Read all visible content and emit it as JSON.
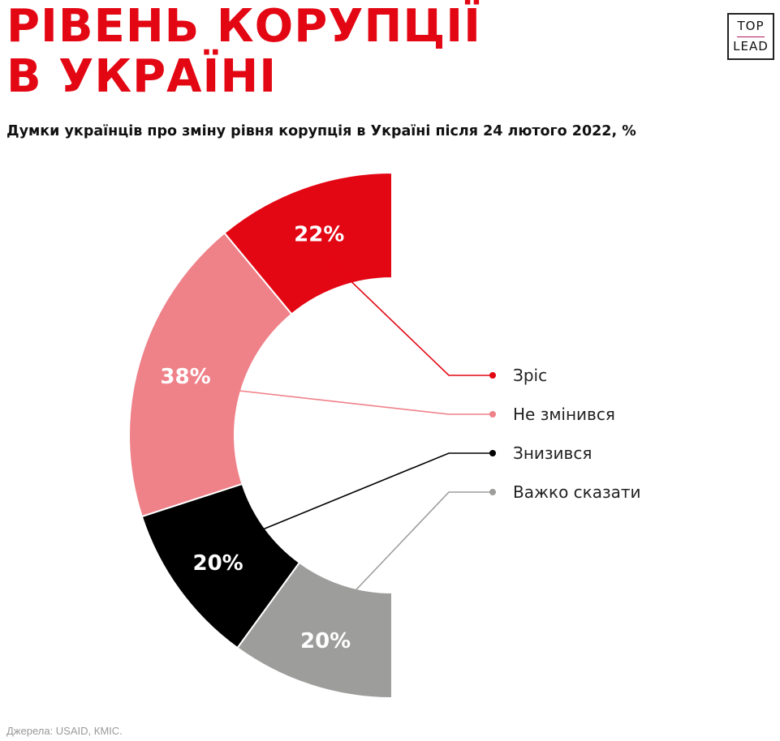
{
  "title": {
    "line1": "Рівень корупції",
    "line2": "в Україні"
  },
  "logo": {
    "line1": "TOP",
    "line2": "LEAD"
  },
  "subtitle": "Думки українців про зміну рівня корупція в Україні після 24 лютого 2022, %",
  "source": "Джерела: USAID, КМІС.",
  "chart_data": {
    "type": "pie",
    "variant": "half-donut",
    "unit": "%",
    "categories": [
      "Зріс",
      "Не змінився",
      "Знизився",
      "Важко сказати"
    ],
    "values": [
      22,
      38,
      20,
      20
    ],
    "labels": [
      "22%",
      "38%",
      "20%",
      "20%"
    ],
    "colors": [
      "#e30613",
      "#ef8189",
      "#000000",
      "#9d9d9c"
    ],
    "legend_position": "right"
  }
}
